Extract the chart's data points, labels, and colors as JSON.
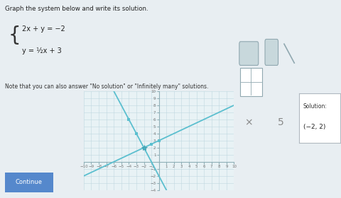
{
  "title": "Graph the system below and write its solution.",
  "eq1": "2x + y = −2",
  "eq2": "y = ½x + 3",
  "note_text": "Note that you can also answer \"No solution\" or \"Infinitely many\" solutions.",
  "solution_label": "Solution:",
  "solution_value": "(−2, 2)",
  "continue_btn": "Continue",
  "xlim": [
    -10,
    10
  ],
  "ylim": [
    -4,
    10
  ],
  "line_color": "#5bbfcf",
  "dot_color": "#4aafc0",
  "grid_color": "#c0d8e0",
  "bg_color": "#e8f2f5",
  "solution_point": [
    -2,
    2
  ],
  "page_bg": "#e8eef2",
  "graph_border": "#c0ccd4",
  "tool_bg": "#dde8ee"
}
